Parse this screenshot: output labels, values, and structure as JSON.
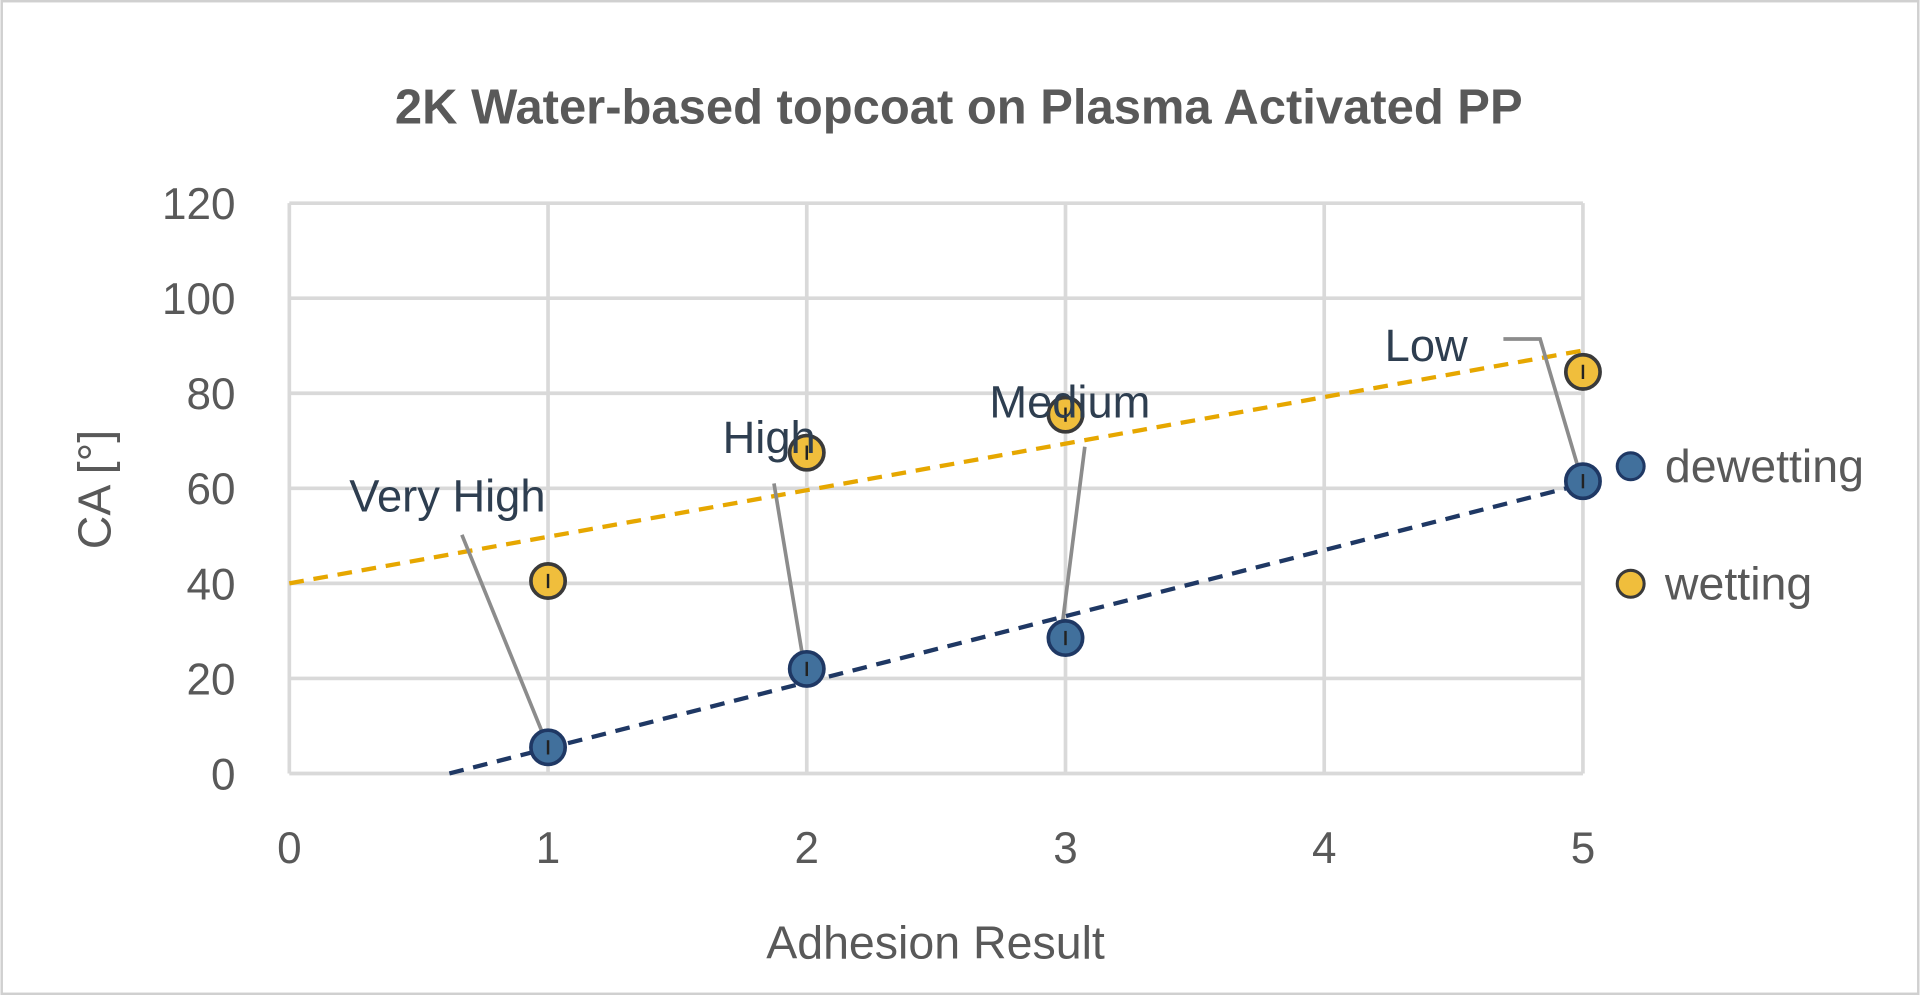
{
  "chart_data": {
    "type": "scatter",
    "title": "2K Water-based topcoat on Plasma Activated PP",
    "xlabel": "Adhesion Result",
    "ylabel": "CA [°]",
    "xlim": [
      0,
      5
    ],
    "ylim": [
      0,
      120
    ],
    "xticks": [
      "0",
      "1",
      "2",
      "3",
      "4",
      "5"
    ],
    "yticks": [
      "0",
      "20",
      "40",
      "60",
      "80",
      "100",
      "120"
    ],
    "grid": true,
    "legend_position": "right",
    "series": [
      {
        "name": "dewetting",
        "color": "#41709C",
        "edge": "#1F3864",
        "trend_color": "#1F3864",
        "x": [
          1,
          2,
          3,
          5
        ],
        "y": [
          5.5,
          22,
          28.5,
          61.5
        ],
        "yerr": [
          1.5,
          1.5,
          1.5,
          1.5
        ],
        "trendline": {
          "slope": 13.9,
          "intercept": -8.6
        }
      },
      {
        "name": "wetting",
        "color": "#F0BE3C",
        "edge": "#3A3A3A",
        "trend_color": "#E6A700",
        "x": [
          1,
          2,
          3,
          5
        ],
        "y": [
          40.5,
          67.5,
          75.5,
          84.5
        ],
        "yerr": [
          1.5,
          1.5,
          1.5,
          1.5
        ],
        "trendline": {
          "slope": 9.8,
          "intercept": 40
        }
      }
    ],
    "annotations": [
      {
        "text": "Very High",
        "x": 1,
        "y": 5.5
      },
      {
        "text": "High",
        "x": 2,
        "y": 22
      },
      {
        "text": "Medium",
        "x": 3,
        "y": 28.5
      },
      {
        "text": "Low",
        "x": 5,
        "y": 61.5
      }
    ]
  }
}
